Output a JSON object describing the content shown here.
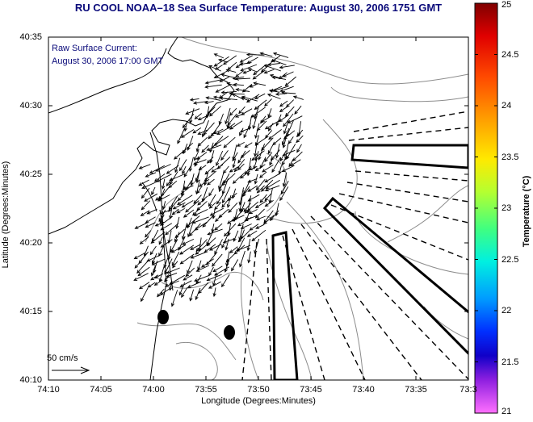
{
  "title": "RU COOL  NOAA–18  Sea Surface Temperature:  August 30, 2006 1751 GMT",
  "legend": {
    "line1": "Raw Surface Current:",
    "line2": "August 30, 2006 17:00 GMT",
    "scale_label": "50 cm/s"
  },
  "axes": {
    "xlabel": "Longitude (Degrees:Minutes)",
    "ylabel": "Latitude (Degrees:Minutes)",
    "xticks": [
      "74:10",
      "74:05",
      "74:00",
      "73:55",
      "73:50",
      "73:45",
      "73:40",
      "73:35",
      "73:3"
    ],
    "yticks": [
      "40:35",
      "40:30",
      "40:25",
      "40:20",
      "40:15",
      "40:10"
    ]
  },
  "colorbar": {
    "label": "Temperature (°C)",
    "ticks": [
      "25",
      "24.5",
      "24",
      "23.5",
      "23",
      "22.5",
      "22",
      "21.5",
      "21"
    ],
    "range": [
      21,
      25
    ]
  },
  "colors": {
    "title_text": "#0a0a7a",
    "map_background": "#ffffff",
    "coastline": "#000000",
    "bathymetry": "#8c8c8c",
    "vectors": "#000000"
  },
  "map_content": {
    "coastline": "black",
    "bathymetry_contours": "gray",
    "current_vectors": "black arrows",
    "shipping_channels": "dashed lines",
    "disposal_areas": "thick outlined polygons",
    "markers": "two black filled ovals"
  }
}
